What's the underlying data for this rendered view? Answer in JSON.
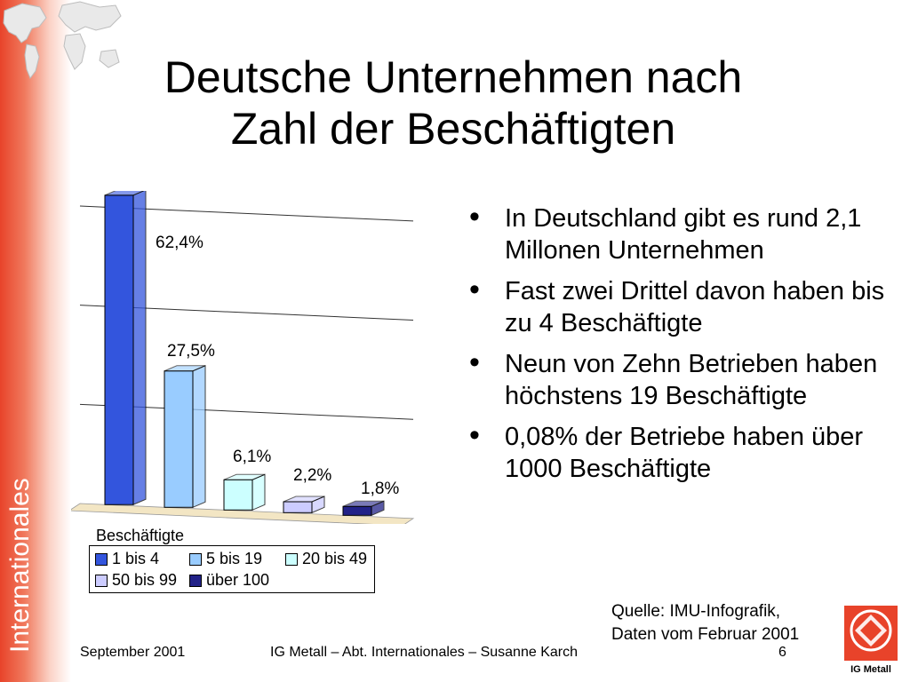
{
  "slide": {
    "title_line1": "Deutsche Unternehmen nach",
    "title_line2": "Zahl der Beschäftigten",
    "side_label": "Internationales",
    "bullets": [
      "In Deutschland gibt es rund 2,1 Millonen Unternehmen",
      "Fast zwei Drittel davon haben bis zu 4 Beschäftigte",
      "Neun von Zehn Betrieben haben höchstens 19 Beschäftigte",
      "0,08% der Betriebe haben über 1000 Beschäftigte"
    ],
    "source_line1": "Quelle: IMU-Infografik,",
    "source_line2": "Daten vom Februar 2001",
    "footer_date": "September 2001",
    "footer_center": "IG Metall – Abt. Internationales – Susanne Karch",
    "page_number": "6",
    "logo_text": "IG Metall"
  },
  "colors": {
    "accent_red": "#e8432a",
    "bar_1": "#3355dd",
    "bar_2": "#99ccff",
    "bar_3": "#ccffff",
    "bar_4": "#ccccff",
    "bar_5": "#222288"
  },
  "chart_data": {
    "type": "bar",
    "title": "",
    "legend_title": "Beschäftigte",
    "legend_position": "bottom-left",
    "categories": [
      "1 bis 4",
      "5 bis 19",
      "20 bis 49",
      "50 bis 99",
      "über 100"
    ],
    "values": [
      62.4,
      27.5,
      6.1,
      2.2,
      1.8
    ],
    "value_labels": [
      "62,4%",
      "27,5%",
      "6,1%",
      "2,2%",
      "1,8%"
    ],
    "ylim": [
      0,
      60
    ],
    "grid": true,
    "xlabel": "",
    "ylabel": ""
  }
}
